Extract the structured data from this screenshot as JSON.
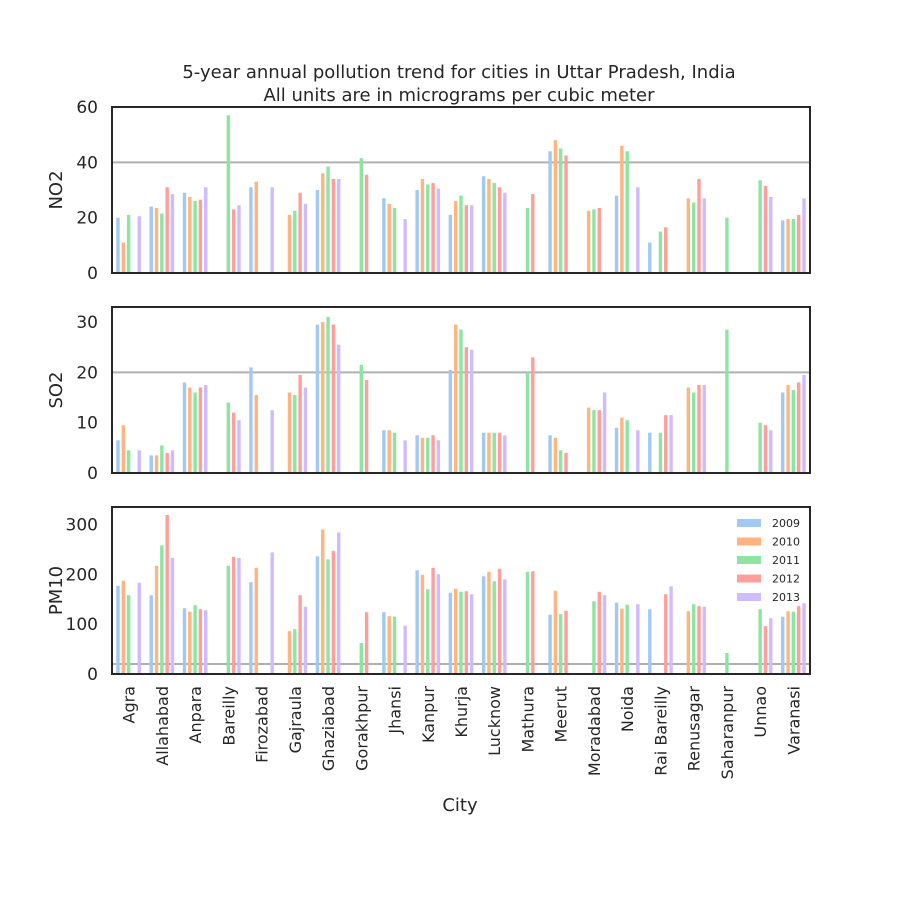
{
  "chart_data": {
    "type": "bar",
    "title": "5-year annual pollution trend for cities in Uttar Pradesh, India",
    "subtitle": "All units are in micrograms per cubic meter",
    "xlabel": "City",
    "categories": [
      "Agra",
      "Allahabad",
      "Anpara",
      "Bareilly",
      "Firozabad",
      "Gajraula",
      "Ghaziabad",
      "Gorakhpur",
      "Jhansi",
      "Kanpur",
      "Khurja",
      "Lucknow",
      "Mathura",
      "Meerut",
      "Moradabad",
      "Noida",
      "Rai Bareilly",
      "Renusagar",
      "Saharanpur",
      "Unnao",
      "Varanasi"
    ],
    "legend": [
      "2009",
      "2010",
      "2011",
      "2012",
      "2013"
    ],
    "legend_position": "upper-right (PM10 panel)",
    "colors": [
      "#a1c9f4",
      "#ffb482",
      "#8de5a1",
      "#ff9f9b",
      "#d0bbff"
    ],
    "grid": false,
    "panels": [
      {
        "ylabel": "NO2",
        "ylim": [
          0,
          60
        ],
        "yticks": [
          "0",
          "20",
          "40",
          "60"
        ],
        "threshold": 40,
        "series": [
          {
            "name": "2009",
            "values": [
              20,
              24,
              29,
              null,
              31,
              null,
              30,
              null,
              27,
              30,
              21,
              35,
              null,
              44,
              null,
              28,
              11,
              null,
              null,
              null,
              19
            ]
          },
          {
            "name": "2010",
            "values": [
              11,
              23.5,
              27.5,
              null,
              33,
              21,
              36,
              null,
              25,
              34,
              26,
              34,
              null,
              48,
              22.5,
              46,
              null,
              27,
              null,
              null,
              19.5
            ]
          },
          {
            "name": "2011",
            "values": [
              21,
              21.5,
              26,
              57,
              null,
              22.5,
              38.5,
              41.5,
              23.5,
              32,
              28,
              32.5,
              23.5,
              45,
              23,
              44,
              15,
              25.5,
              20,
              33.5,
              19.5
            ]
          },
          {
            "name": "2012",
            "values": [
              null,
              31,
              26.5,
              23,
              null,
              29,
              34,
              35.5,
              null,
              32.5,
              24.5,
              31,
              28.5,
              42.5,
              23.5,
              null,
              16.5,
              34,
              null,
              31.5,
              21
            ]
          },
          {
            "name": "2013",
            "values": [
              20.5,
              28.5,
              31,
              24.5,
              31,
              25,
              34,
              null,
              19.5,
              30.5,
              24.5,
              29,
              null,
              null,
              null,
              31,
              null,
              27,
              null,
              27.5,
              27
            ]
          }
        ]
      },
      {
        "ylabel": "SO2",
        "ylim": [
          0,
          33
        ],
        "yticks": [
          "0",
          "10",
          "20",
          "30"
        ],
        "threshold": 20,
        "series": [
          {
            "name": "2009",
            "values": [
              6.5,
              3.5,
              18,
              null,
              21,
              null,
              29.5,
              null,
              8.5,
              7.5,
              20.5,
              8,
              null,
              7.5,
              null,
              9,
              8,
              null,
              null,
              null,
              16
            ]
          },
          {
            "name": "2010",
            "values": [
              9.5,
              3.5,
              17,
              null,
              15.5,
              16,
              30,
              null,
              8.5,
              7,
              29.5,
              8,
              null,
              7,
              13,
              11,
              null,
              17,
              null,
              null,
              17.5
            ]
          },
          {
            "name": "2011",
            "values": [
              4.5,
              5.5,
              16,
              14,
              null,
              15.5,
              31,
              21.5,
              8,
              7,
              28.5,
              8,
              20,
              4.5,
              12.5,
              10.5,
              8,
              16,
              28.5,
              10,
              16.5
            ]
          },
          {
            "name": "2012",
            "values": [
              null,
              4,
              17,
              12,
              null,
              19.5,
              29.5,
              18.5,
              null,
              7.5,
              25,
              8,
              23,
              4,
              12.5,
              null,
              11.5,
              17.5,
              null,
              9.5,
              18
            ]
          },
          {
            "name": "2013",
            "values": [
              4.5,
              4.5,
              17.5,
              10.5,
              12.5,
              17,
              25.5,
              null,
              6.5,
              6.5,
              24.5,
              7.5,
              null,
              null,
              16,
              8.5,
              11.5,
              17.5,
              null,
              8.5,
              19.5
            ]
          }
        ]
      },
      {
        "ylabel": "PM10",
        "ylim": [
          0,
          335
        ],
        "yticks": [
          "0",
          "100",
          "200",
          "300"
        ],
        "threshold": 20,
        "series": [
          {
            "name": "2009",
            "values": [
              177,
              158,
              132,
              null,
              184,
              null,
              236,
              null,
              124,
              208,
              163,
              196,
              null,
              119,
              null,
              143,
              130,
              null,
              null,
              null,
              115
            ]
          },
          {
            "name": "2010",
            "values": [
              187,
              217,
              125,
              null,
              213,
              86,
              290,
              null,
              116,
              199,
              171,
              205,
              null,
              167,
              null,
              131,
              null,
              126,
              null,
              null,
              126
            ]
          },
          {
            "name": "2011",
            "values": [
              158,
              258,
              138,
              217,
              null,
              90,
              230,
              62,
              115,
              170,
              165,
              186,
              205,
              120,
              146,
              139,
              null,
              140,
              42,
              130,
              125
            ]
          },
          {
            "name": "2012",
            "values": [
              null,
              319,
              130,
              235,
              null,
              158,
              247,
              124,
              null,
              213,
              166,
              211,
              206,
              127,
              165,
              null,
              160,
              136,
              null,
              96,
              136
            ]
          },
          {
            "name": "2013",
            "values": [
              183,
              233,
              128,
              233,
              244,
              135,
              284,
              null,
              97,
              200,
              160,
              190,
              null,
              null,
              158,
              140,
              176,
              135,
              null,
              112,
              142
            ]
          }
        ]
      }
    ]
  }
}
